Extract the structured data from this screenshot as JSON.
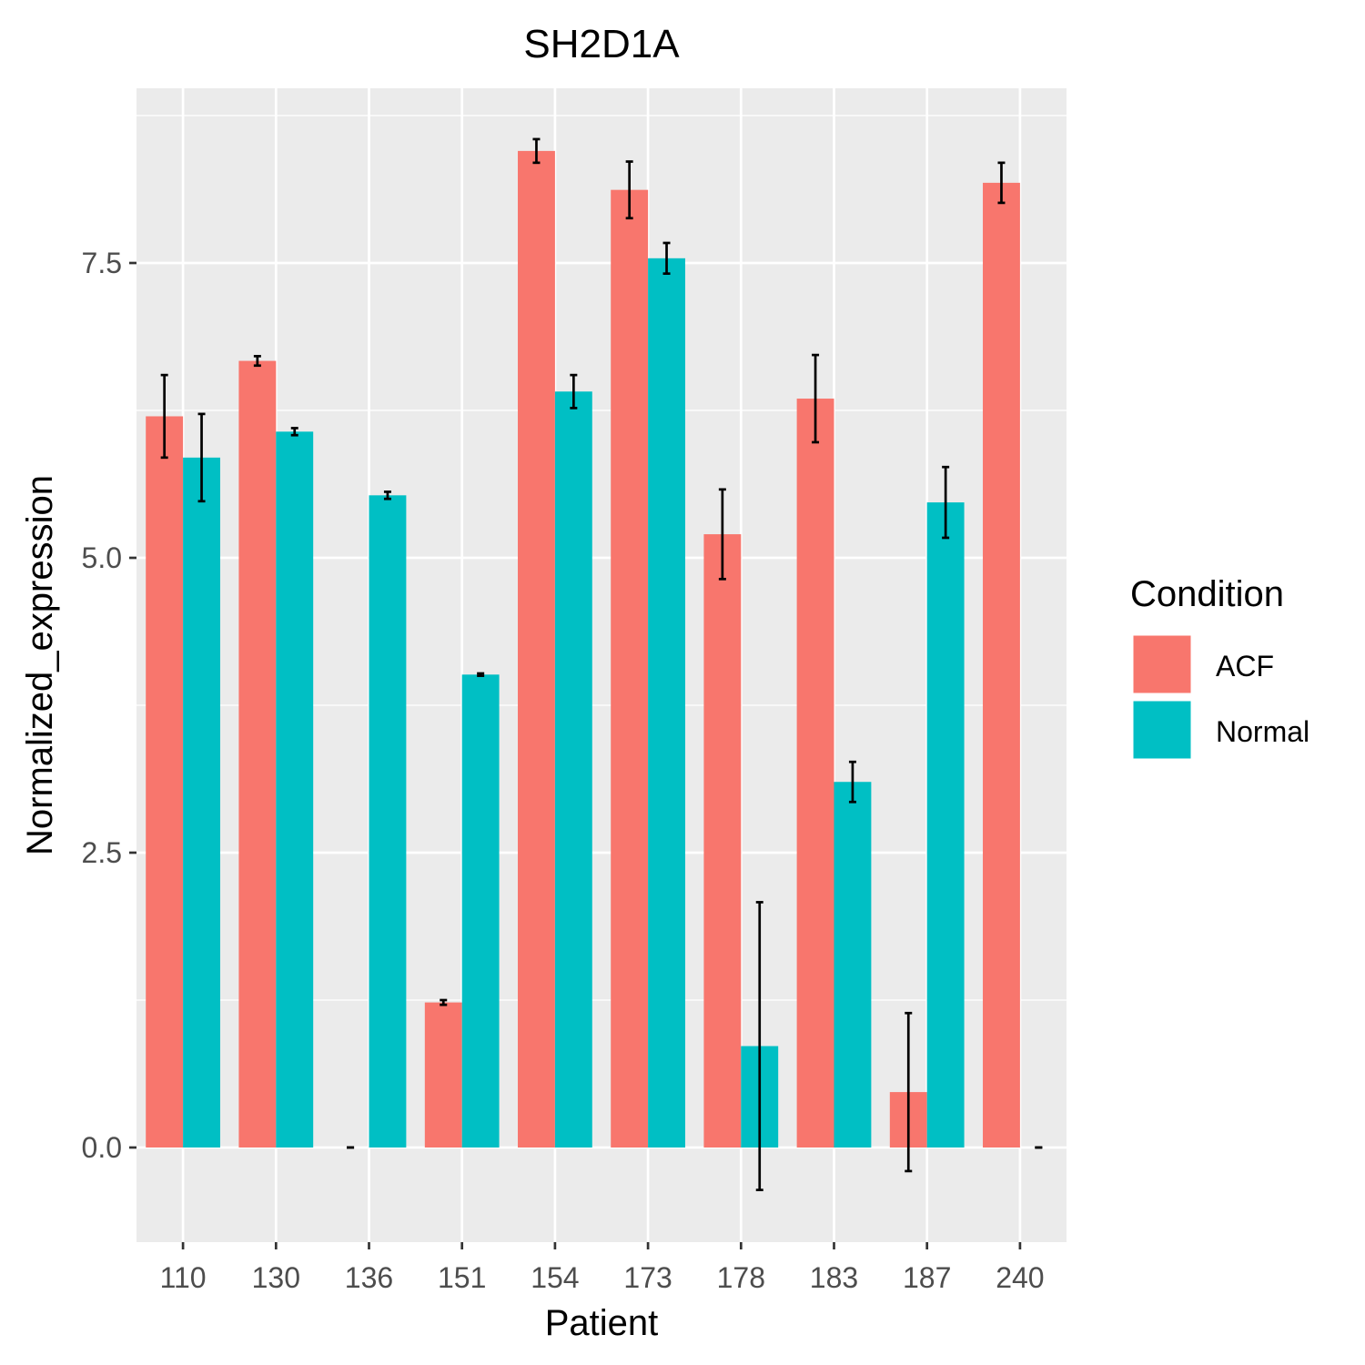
{
  "chart_data": {
    "type": "bar",
    "title": "SH2D1A",
    "xlabel": "Patient",
    "ylabel": "Normalized_expression",
    "categories": [
      "110",
      "130",
      "136",
      "151",
      "154",
      "173",
      "178",
      "183",
      "187",
      "240"
    ],
    "ylim": [
      -0.8,
      9.0
    ],
    "yticks": [
      0.0,
      2.5,
      5.0,
      7.5
    ],
    "ytick_labels": [
      "0.0",
      "2.5",
      "5.0",
      "7.5"
    ],
    "grid": true,
    "series": [
      {
        "name": "ACF",
        "color": "#F8766D",
        "values": [
          6.2,
          6.67,
          0.0,
          1.23,
          8.45,
          8.12,
          5.2,
          6.35,
          0.47,
          8.18
        ],
        "error": [
          0.35,
          0.04,
          0.0,
          0.02,
          0.1,
          0.24,
          0.38,
          0.37,
          0.67,
          0.17
        ]
      },
      {
        "name": "Normal",
        "color": "#00BFC4",
        "values": [
          5.85,
          6.07,
          5.53,
          4.01,
          6.41,
          7.54,
          0.86,
          3.1,
          5.47,
          0.0
        ],
        "error": [
          0.37,
          0.03,
          0.03,
          0.01,
          0.14,
          0.13,
          1.22,
          0.17,
          0.3,
          0.0
        ]
      }
    ],
    "legend": {
      "title": "Condition",
      "position": "right"
    }
  }
}
